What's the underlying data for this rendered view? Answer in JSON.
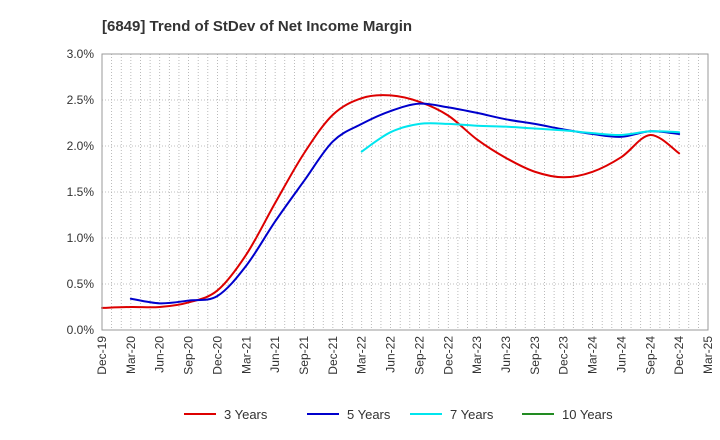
{
  "chart_data": {
    "type": "line",
    "title": "[6849]  Trend of StDev of Net Income Margin",
    "xlabel": "",
    "ylabel": "",
    "x": [
      "Dec-19",
      "Mar-20",
      "Jun-20",
      "Sep-20",
      "Dec-20",
      "Mar-21",
      "Jun-21",
      "Sep-21",
      "Dec-21",
      "Mar-22",
      "Jun-22",
      "Sep-22",
      "Dec-22",
      "Mar-23",
      "Jun-23",
      "Sep-23",
      "Dec-23",
      "Mar-24",
      "Jun-24",
      "Sep-24",
      "Dec-24",
      "Mar-25"
    ],
    "ylim": [
      0,
      3.0
    ],
    "yticks": [
      "0.0%",
      "0.5%",
      "1.0%",
      "1.5%",
      "2.0%",
      "2.5%",
      "3.0%"
    ],
    "grid": true,
    "legend_position": "bottom",
    "series": [
      {
        "name": "3 Years",
        "color": "#dd0000",
        "values": [
          0.24,
          0.25,
          0.25,
          0.3,
          0.43,
          0.82,
          1.38,
          1.92,
          2.34,
          2.52,
          2.55,
          2.48,
          2.33,
          2.07,
          1.87,
          1.72,
          1.66,
          1.72,
          1.88,
          2.12,
          1.92,
          null
        ]
      },
      {
        "name": "5 Years",
        "color": "#0000cc",
        "values": [
          null,
          0.34,
          0.29,
          0.32,
          0.37,
          0.7,
          1.18,
          1.62,
          2.05,
          2.24,
          2.38,
          2.46,
          2.42,
          2.36,
          2.29,
          2.24,
          2.18,
          2.13,
          2.1,
          2.16,
          2.13,
          null
        ]
      },
      {
        "name": "7 Years",
        "color": "#00e5ee",
        "values": [
          null,
          null,
          null,
          null,
          null,
          null,
          null,
          null,
          null,
          1.94,
          2.15,
          2.24,
          2.24,
          2.22,
          2.21,
          2.19,
          2.17,
          2.14,
          2.12,
          2.16,
          2.15,
          null
        ]
      },
      {
        "name": "10 Years",
        "color": "#228b22",
        "values": [
          null,
          null,
          null,
          null,
          null,
          null,
          null,
          null,
          null,
          null,
          null,
          null,
          null,
          null,
          null,
          null,
          null,
          null,
          null,
          null,
          null,
          null
        ]
      }
    ]
  }
}
